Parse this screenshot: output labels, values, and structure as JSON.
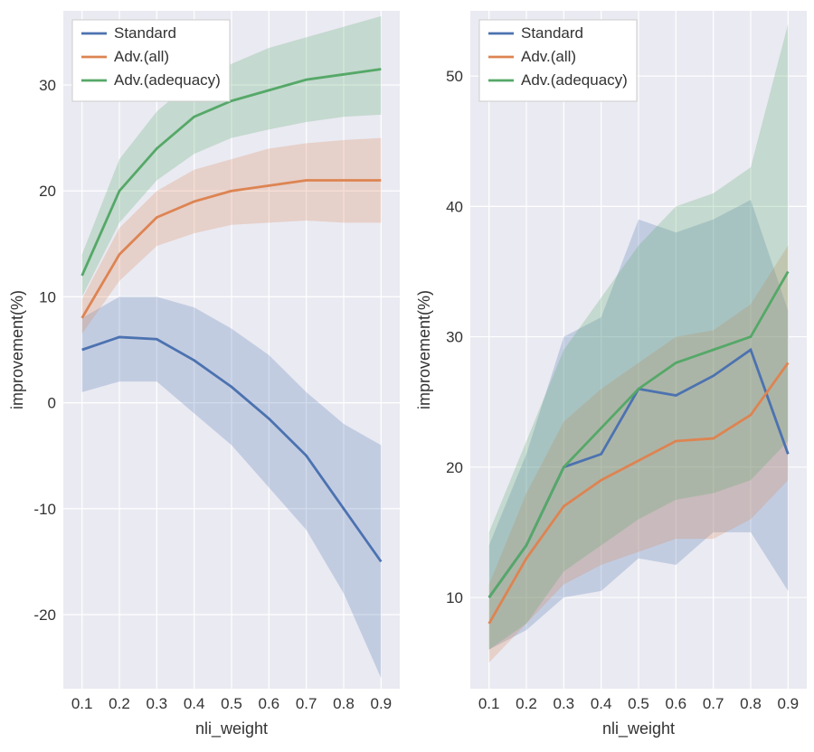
{
  "left_chart": {
    "type": "line",
    "xlabel": "nli_weight",
    "ylabel": "improvement(%)",
    "xlim": [
      0.05,
      0.95
    ],
    "ylim": [
      -27,
      37
    ],
    "xticks": [
      0.1,
      0.2,
      0.3,
      0.4,
      0.5,
      0.6,
      0.7,
      0.8,
      0.9
    ],
    "yticks": [
      -20,
      -10,
      0,
      10,
      20,
      30
    ],
    "label_fontsize": 18,
    "tick_fontsize": 17,
    "background_color": "#eaeaf2",
    "grid_color": "#ffffff",
    "line_width": 2.8,
    "fill_opacity": 0.25,
    "series": [
      {
        "name": "Standard",
        "color": "#4c72b0",
        "x": [
          0.1,
          0.2,
          0.3,
          0.4,
          0.5,
          0.6,
          0.7,
          0.8,
          0.9
        ],
        "y": [
          5,
          6.2,
          6,
          4,
          1.5,
          -1.5,
          -5,
          -10,
          -15
        ],
        "lo": [
          1,
          2,
          2,
          -1,
          -4,
          -8,
          -12,
          -18,
          -26
        ],
        "hi": [
          8,
          10,
          10,
          9,
          7,
          4.5,
          1,
          -2,
          -4
        ]
      },
      {
        "name": "Adv.(all)",
        "color": "#dd8452",
        "x": [
          0.1,
          0.2,
          0.3,
          0.4,
          0.5,
          0.6,
          0.7,
          0.8,
          0.9
        ],
        "y": [
          8,
          14,
          17.5,
          19,
          20,
          20.5,
          21,
          21,
          21
        ],
        "lo": [
          6.5,
          11.5,
          14.8,
          16,
          16.8,
          17,
          17.2,
          17,
          17
        ],
        "hi": [
          9.8,
          16.5,
          20,
          22,
          23,
          24,
          24.5,
          24.8,
          25
        ]
      },
      {
        "name": "Adv.(adequacy)",
        "color": "#55a868",
        "x": [
          0.1,
          0.2,
          0.3,
          0.4,
          0.5,
          0.6,
          0.7,
          0.8,
          0.9
        ],
        "y": [
          12,
          20,
          24,
          27,
          28.5,
          29.5,
          30.5,
          31,
          31.5
        ],
        "lo": [
          10,
          17,
          21,
          23.5,
          25,
          25.8,
          26.5,
          27,
          27.2
        ],
        "hi": [
          14,
          23,
          27.5,
          30.5,
          32,
          33.5,
          34.5,
          35.5,
          36.5
        ]
      }
    ],
    "legend": {
      "position": "top-left",
      "items": [
        "Standard",
        "Adv.(all)",
        "Adv.(adequacy)"
      ]
    }
  },
  "right_chart": {
    "type": "line",
    "xlabel": "nli_weight",
    "ylabel": "improvement(%)",
    "xlim": [
      0.05,
      0.95
    ],
    "ylim": [
      3,
      55
    ],
    "xticks": [
      0.1,
      0.2,
      0.3,
      0.4,
      0.5,
      0.6,
      0.7,
      0.8,
      0.9
    ],
    "yticks": [
      10,
      20,
      30,
      40,
      50
    ],
    "label_fontsize": 18,
    "tick_fontsize": 17,
    "background_color": "#eaeaf2",
    "grid_color": "#ffffff",
    "line_width": 2.8,
    "fill_opacity": 0.25,
    "series": [
      {
        "name": "Standard",
        "color": "#4c72b0",
        "x": [
          0.1,
          0.2,
          0.3,
          0.4,
          0.5,
          0.6,
          0.7,
          0.8,
          0.9
        ],
        "y": [
          10,
          14,
          20,
          21,
          26,
          25.5,
          27,
          29,
          21
        ],
        "lo": [
          6,
          7.5,
          10,
          10.5,
          13,
          12.5,
          15,
          15,
          10.5
        ],
        "hi": [
          14,
          21,
          30,
          31.5,
          39,
          38,
          39,
          40.5,
          32
        ]
      },
      {
        "name": "Adv.(all)",
        "color": "#dd8452",
        "x": [
          0.1,
          0.2,
          0.3,
          0.4,
          0.5,
          0.6,
          0.7,
          0.8,
          0.9
        ],
        "y": [
          8,
          13,
          17,
          19,
          20.5,
          22,
          22.2,
          24,
          28
        ],
        "lo": [
          5,
          8,
          11,
          12.5,
          13.5,
          14.5,
          14.5,
          16,
          19
        ],
        "hi": [
          11,
          18,
          23.5,
          26,
          28,
          30,
          30.5,
          32.5,
          37
        ]
      },
      {
        "name": "Adv.(adequacy)",
        "color": "#55a868",
        "x": [
          0.1,
          0.2,
          0.3,
          0.4,
          0.5,
          0.6,
          0.7,
          0.8,
          0.9
        ],
        "y": [
          10,
          14,
          20,
          23,
          26,
          28,
          29,
          30,
          35
        ],
        "lo": [
          6,
          8,
          12,
          14,
          16,
          17.5,
          18,
          19,
          22
        ],
        "hi": [
          15,
          22,
          29,
          33,
          37,
          40,
          41,
          43,
          54
        ]
      }
    ],
    "legend": {
      "position": "top-left",
      "items": [
        "Standard",
        "Adv.(all)",
        "Adv.(adequacy)"
      ]
    }
  }
}
